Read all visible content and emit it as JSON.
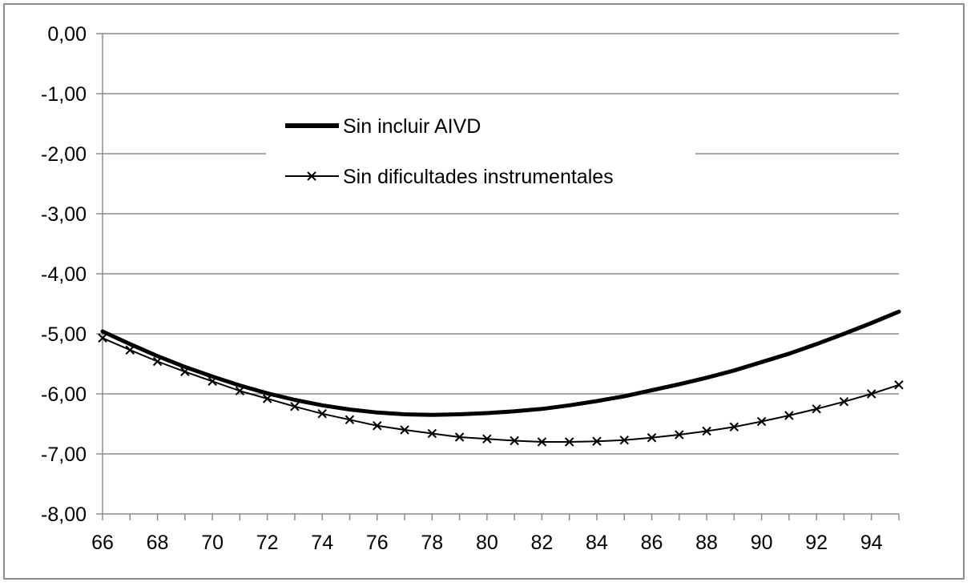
{
  "chart_data": {
    "type": "line",
    "title": "",
    "xlabel": "",
    "ylabel": "",
    "xlim": [
      66,
      95
    ],
    "ylim": [
      -8,
      0
    ],
    "x_ticks": [
      "66",
      "68",
      "70",
      "72",
      "74",
      "76",
      "78",
      "80",
      "82",
      "84",
      "86",
      "88",
      "90",
      "92",
      "94"
    ],
    "y_ticks": [
      "0,00",
      "-1,00",
      "-2,00",
      "-3,00",
      "-4,00",
      "-5,00",
      "-6,00",
      "-7,00",
      "-8,00"
    ],
    "grid": "horizontal",
    "legend_position": "top-center",
    "x": [
      66,
      67,
      68,
      69,
      70,
      71,
      72,
      73,
      74,
      75,
      76,
      77,
      78,
      79,
      80,
      81,
      82,
      83,
      84,
      85,
      86,
      87,
      88,
      89,
      90,
      91,
      92,
      93,
      94,
      95
    ],
    "series": [
      {
        "name": "Sin incluir AIVD",
        "style": "thick-line",
        "color": "#000000",
        "values": [
          -4.96,
          -5.17,
          -5.37,
          -5.55,
          -5.71,
          -5.86,
          -5.99,
          -6.1,
          -6.19,
          -6.26,
          -6.31,
          -6.34,
          -6.35,
          -6.34,
          -6.32,
          -6.29,
          -6.25,
          -6.19,
          -6.12,
          -6.04,
          -5.94,
          -5.84,
          -5.73,
          -5.61,
          -5.47,
          -5.33,
          -5.17,
          -5.0,
          -4.82,
          -4.63
        ]
      },
      {
        "name": "Sin dificultades instrumentales",
        "style": "thin-line-x-markers",
        "color": "#000000",
        "values": [
          -5.07,
          -5.27,
          -5.46,
          -5.63,
          -5.79,
          -5.95,
          -6.08,
          -6.21,
          -6.33,
          -6.43,
          -6.53,
          -6.6,
          -6.66,
          -6.72,
          -6.75,
          -6.78,
          -6.8,
          -6.8,
          -6.79,
          -6.77,
          -6.73,
          -6.68,
          -6.62,
          -6.55,
          -6.46,
          -6.36,
          -6.25,
          -6.13,
          -6.0,
          -5.85
        ]
      }
    ]
  }
}
